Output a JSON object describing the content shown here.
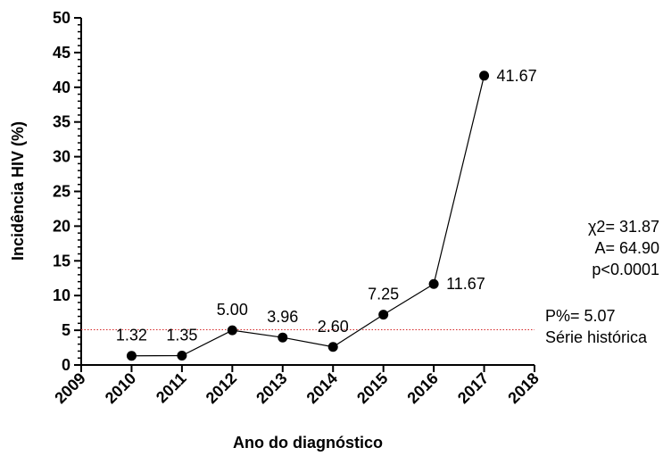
{
  "chart_data": {
    "type": "line",
    "xlabel": "Ano do diagnóstico",
    "ylabel": "Incidência HIV (%)",
    "xlim": [
      2009,
      2018
    ],
    "ylim": [
      0,
      50
    ],
    "x_ticks": [
      "2009",
      "2010",
      "2011",
      "2012",
      "2013",
      "2014",
      "2015",
      "2016",
      "2017",
      "2018"
    ],
    "y_ticks": [
      "0",
      "5",
      "10",
      "15",
      "20",
      "25",
      "30",
      "35",
      "40",
      "45",
      "50"
    ],
    "x": [
      2010,
      2011,
      2012,
      2013,
      2014,
      2015,
      2016,
      2017
    ],
    "series": [
      {
        "values": [
          1.32,
          1.35,
          5.0,
          3.96,
          2.6,
          7.25,
          11.67,
          41.67
        ],
        "labels": [
          "1.32",
          "1.35",
          "5.00",
          "3.96",
          "2.60",
          "7.25",
          "11.67",
          "41.67"
        ],
        "color": "#000000"
      }
    ],
    "reference_line": {
      "value": 5.07,
      "color": "#d62728",
      "style": "dotted",
      "label_lines": [
        "P%= 5.07",
        "Série histórica"
      ]
    },
    "annotation": {
      "lines": [
        "χ2= 31.87",
        "A= 64.90",
        "p<0.0001"
      ]
    },
    "grid": false
  }
}
